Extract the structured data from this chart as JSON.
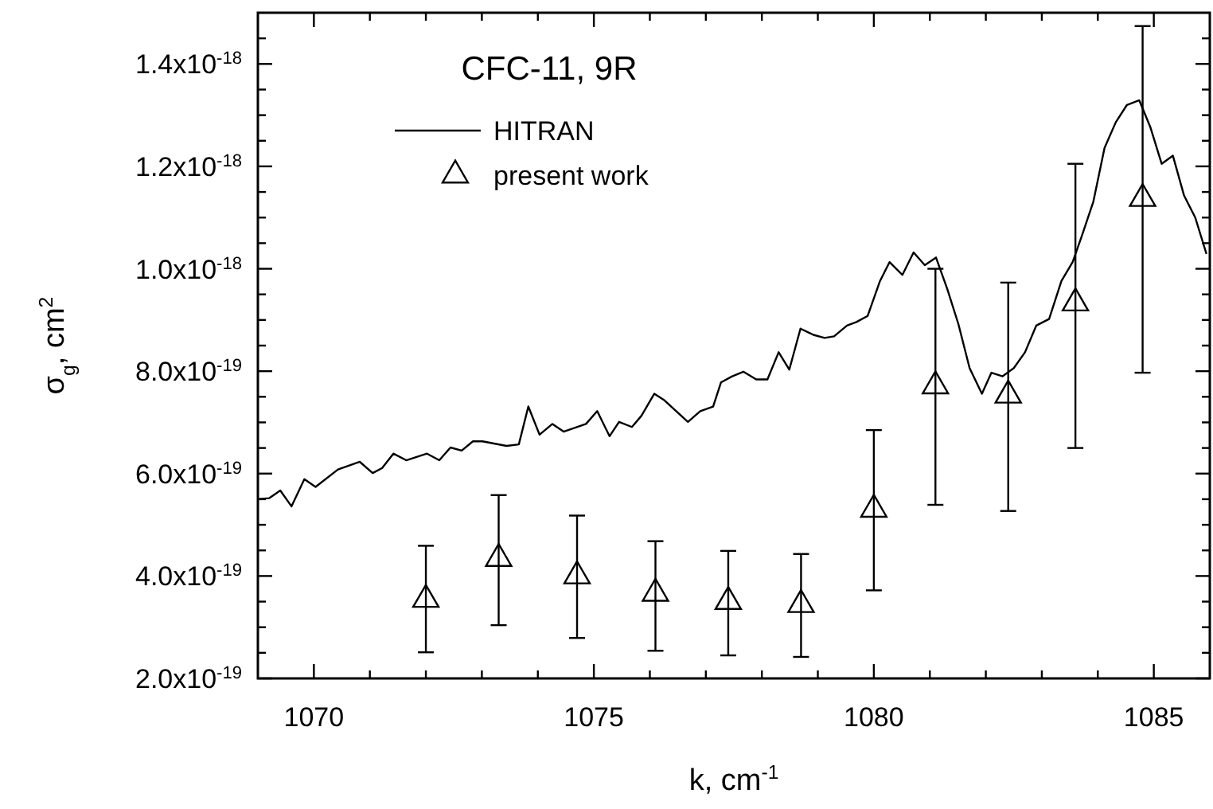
{
  "chart_data": {
    "type": "line",
    "title": "CFC-11,  9R",
    "xlabel": "k, cm$^{-1}$",
    "ylabel": "σ$_{g}$, cm$^{2}$",
    "xlim": [
      1069,
      1086
    ],
    "xticks": [
      {
        "value": 1070,
        "label": "1070"
      },
      {
        "value": 1071,
        "label": null
      },
      {
        "value": 1072,
        "label": null
      },
      {
        "value": 1073,
        "label": null
      },
      {
        "value": 1074,
        "label": null
      },
      {
        "value": 1075,
        "label": "1075"
      },
      {
        "value": 1076,
        "label": null
      },
      {
        "value": 1077,
        "label": null
      },
      {
        "value": 1078,
        "label": null
      },
      {
        "value": 1079,
        "label": null
      },
      {
        "value": 1080,
        "label": "1080"
      },
      {
        "value": 1081,
        "label": null
      },
      {
        "value": 1082,
        "label": null
      },
      {
        "value": 1083,
        "label": null
      },
      {
        "value": 1084,
        "label": null
      },
      {
        "value": 1085,
        "label": "1085"
      }
    ],
    "ylim": [
      2e-19,
      1.5e-18
    ],
    "yticks": [
      {
        "value": 2e-19,
        "label": "2.0x10$^{-19}$"
      },
      {
        "value": 2.5e-19,
        "label": null
      },
      {
        "value": 3e-19,
        "label": null
      },
      {
        "value": 3.5e-19,
        "label": null
      },
      {
        "value": 4e-19,
        "label": "4.0x10$^{-19}$"
      },
      {
        "value": 4.5e-19,
        "label": null
      },
      {
        "value": 5e-19,
        "label": null
      },
      {
        "value": 5.5e-19,
        "label": null
      },
      {
        "value": 6e-19,
        "label": "6.0x10$^{-19}$"
      },
      {
        "value": 6.5e-19,
        "label": null
      },
      {
        "value": 7e-19,
        "label": null
      },
      {
        "value": 7.5e-19,
        "label": null
      },
      {
        "value": 8e-19,
        "label": "8.0x10$^{-19}$"
      },
      {
        "value": 8.5e-19,
        "label": null
      },
      {
        "value": 9e-19,
        "label": null
      },
      {
        "value": 9.5e-19,
        "label": null
      },
      {
        "value": 1e-18,
        "label": "1.0x10$^{-18}$"
      },
      {
        "value": 1.05e-18,
        "label": null
      },
      {
        "value": 1.1e-18,
        "label": null
      },
      {
        "value": 1.15e-18,
        "label": null
      },
      {
        "value": 1.2e-18,
        "label": "1.2x10$^{-18}$"
      },
      {
        "value": 1.25e-18,
        "label": null
      },
      {
        "value": 1.3e-18,
        "label": null
      },
      {
        "value": 1.35e-18,
        "label": null
      },
      {
        "value": 1.4e-18,
        "label": "1.4x10$^{-18}$"
      },
      {
        "value": 1.45e-18,
        "label": null
      }
    ],
    "grid": false,
    "legend": "top left",
    "series": [
      {
        "name": "HITRAN",
        "color": "#000000",
        "marker": "none",
        "line_style": "solid",
        "x": [
          1069.0,
          1069.2,
          1069.4,
          1069.6,
          1069.83,
          1070.03,
          1070.43,
          1070.82,
          1071.05,
          1071.22,
          1071.42,
          1071.65,
          1072.02,
          1072.24,
          1072.44,
          1072.64,
          1072.84,
          1073.01,
          1073.44,
          1073.66,
          1073.83,
          1074.03,
          1074.26,
          1074.46,
          1074.86,
          1075.06,
          1075.28,
          1075.45,
          1075.68,
          1075.85,
          1076.08,
          1076.25,
          1076.68,
          1076.9,
          1077.13,
          1077.27,
          1077.47,
          1077.67,
          1077.9,
          1078.1,
          1078.3,
          1078.49,
          1078.69,
          1078.92,
          1079.12,
          1079.29,
          1079.52,
          1079.69,
          1079.89,
          1080.11,
          1080.28,
          1080.51,
          1080.71,
          1080.91,
          1081.11,
          1081.31,
          1081.51,
          1081.71,
          1081.93,
          1082.1,
          1082.3,
          1082.5,
          1082.7,
          1082.9,
          1083.13,
          1083.35,
          1083.55,
          1083.72,
          1083.92,
          1084.12,
          1084.32,
          1084.52,
          1084.74,
          1084.94,
          1085.14,
          1085.34,
          1085.54,
          1085.74,
          1085.94
        ],
        "values": [
          5.5e-19,
          5.52e-19,
          5.67e-19,
          5.36e-19,
          5.89e-19,
          5.74e-19,
          6.08e-19,
          6.23e-19,
          6.01e-19,
          6.11e-19,
          6.39e-19,
          6.26e-19,
          6.39e-19,
          6.26e-19,
          6.51e-19,
          6.45e-19,
          6.63e-19,
          6.63e-19,
          6.54e-19,
          6.57e-19,
          7.31e-19,
          6.76e-19,
          6.97e-19,
          6.82e-19,
          6.97e-19,
          7.22e-19,
          6.73e-19,
          7.01e-19,
          6.91e-19,
          7.13e-19,
          7.56e-19,
          7.44e-19,
          7.01e-19,
          7.22e-19,
          7.31e-19,
          7.78e-19,
          7.9e-19,
          7.99e-19,
          7.84e-19,
          7.84e-19,
          8.37e-19,
          8.03e-19,
          8.83e-19,
          8.71e-19,
          8.65e-19,
          8.68e-19,
          8.89e-19,
          8.96e-19,
          9.08e-19,
          9.76e-19,
          1.013e-18,
          9.88e-19,
          1.032e-18,
          1.007e-18,
          1.022e-18,
          9.61e-19,
          8.92e-19,
          8.06e-19,
          7.56e-19,
          7.97e-19,
          7.9e-19,
          8.06e-19,
          8.37e-19,
          8.89e-19,
          9.02e-19,
          9.76e-19,
          1.013e-18,
          1.066e-18,
          1.131e-18,
          1.236e-18,
          1.286e-18,
          1.32e-18,
          1.329e-18,
          1.276e-18,
          1.205e-18,
          1.221e-18,
          1.143e-18,
          1.1e-18,
          1.029e-18
        ]
      },
      {
        "name": "present work",
        "type": "scatter",
        "color": "#000000",
        "marker": "triangle",
        "x": [
          1072.0,
          1073.3,
          1074.7,
          1076.1,
          1077.4,
          1078.7,
          1080.0,
          1081.1,
          1082.4,
          1083.6,
          1084.8
        ],
        "values": [
          3.54e-19,
          4.34e-19,
          4e-19,
          3.66e-19,
          3.5e-19,
          3.44e-19,
          5.3e-19,
          7.71e-19,
          7.53e-19,
          9.33e-19,
          1.137e-18
        ],
        "errors": [
          [
            2.51e-19,
            4.59e-19
          ],
          [
            3.04e-19,
            5.58e-19
          ],
          [
            2.79e-19,
            5.18e-19
          ],
          [
            2.54e-19,
            4.68e-19
          ],
          [
            2.45e-19,
            4.49e-19
          ],
          [
            2.42e-19,
            4.43e-19
          ],
          [
            3.72e-19,
            6.85e-19
          ],
          [
            5.39e-19,
            1e-18
          ],
          [
            5.27e-19,
            9.73e-19
          ],
          [
            6.5e-19,
            1.205e-18
          ],
          [
            7.97e-19,
            1.474e-18
          ]
        ]
      }
    ]
  }
}
